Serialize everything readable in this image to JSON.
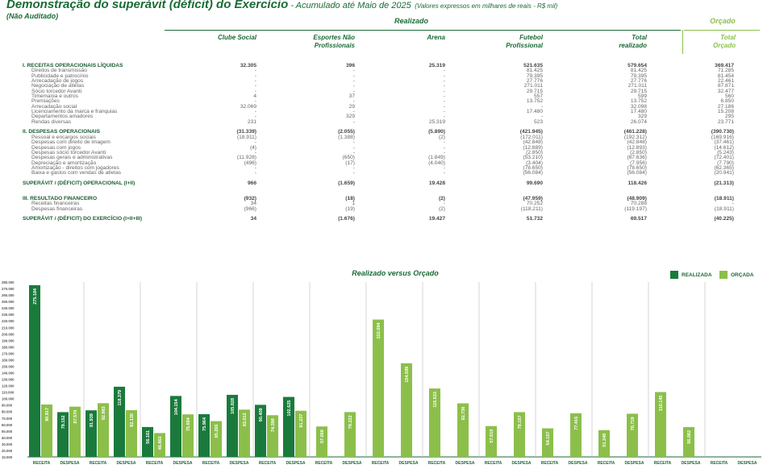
{
  "header": {
    "title": "Demonstração do superávit (déficit) do Exercício",
    "title_sep": " - ",
    "period": "Acumulado até Maio de 2025",
    "unit": "(Valores expressos em milhares de reais - R$ mil)",
    "status": "(Não Auditado)"
  },
  "groups": {
    "realizado": "Realizado",
    "orcado": "Orçado"
  },
  "columns": [
    {
      "line1": "",
      "line2": "Clube Social"
    },
    {
      "line1": "Esportes Não",
      "line2": "Profissionais"
    },
    {
      "line1": "",
      "line2": "Arena"
    },
    {
      "line1": "Futebol",
      "line2": "Profissional"
    },
    {
      "line1": "Total",
      "line2": "realizado"
    },
    {
      "line1": "Total",
      "line2": "Orçado"
    }
  ],
  "rows": [
    {
      "type": "sec",
      "label": "I. RECEITAS OPERACIONAIS LÍQUIDAS",
      "values": [
        "32.305",
        "396",
        "25.319",
        "521.635",
        "579.654",
        "369.417"
      ]
    },
    {
      "type": "sub",
      "label": "Direitos de transmissão",
      "values": [
        "-",
        "-",
        "-",
        "81.425",
        "81.425",
        "71.285"
      ]
    },
    {
      "type": "sub",
      "label": "Publicidade e patrocínio",
      "values": [
        "-",
        "-",
        "-",
        "79.395",
        "79.395",
        "81.454"
      ]
    },
    {
      "type": "sub",
      "label": "Arrecadação de jogos",
      "values": [
        "-",
        "-",
        "-",
        "27.776",
        "27.776",
        "22.461"
      ]
    },
    {
      "type": "sub",
      "label": "Negociação de atletas",
      "values": [
        "-",
        "-",
        "-",
        "271.011",
        "271.011",
        "87.871"
      ]
    },
    {
      "type": "sub",
      "label": "Sócio torcedor Avanti",
      "values": [
        "-",
        "-",
        "-",
        "29.715",
        "29.715",
        "32.477"
      ]
    },
    {
      "type": "sub",
      "label": "Timemania e outros",
      "values": [
        "4",
        "37",
        "-",
        "557",
        "599",
        "560"
      ]
    },
    {
      "type": "sub",
      "label": "Premiações",
      "values": [
        "-",
        "-",
        "-",
        "13.752",
        "13.752",
        "6.850"
      ]
    },
    {
      "type": "sub",
      "label": "Arrecadação social",
      "values": [
        "32.069",
        "29",
        "-",
        "-",
        "32.098",
        "27.186"
      ]
    },
    {
      "type": "sub",
      "label": "Licenciamento da marca e franquias",
      "values": [
        "-",
        "-",
        "-",
        "17.480",
        "17.480",
        "15.208"
      ]
    },
    {
      "type": "sub",
      "label": "Departamentos amadores",
      "values": [
        "-",
        "329",
        "-",
        "-",
        "329",
        "295"
      ]
    },
    {
      "type": "sub",
      "label": "Rendas diversas",
      "values": [
        "231",
        "-",
        "25.319",
        "523",
        "26.074",
        "23.771"
      ]
    },
    {
      "type": "gap"
    },
    {
      "type": "sec",
      "label": "II. DESPESAS OPERACIONAIS",
      "values": [
        "(31.339)",
        "(2.055)",
        "(5.890)",
        "(421.945)",
        "(461.228)",
        "(390.730)"
      ]
    },
    {
      "type": "sub",
      "label": "Pessoal e encargos sociais",
      "values": [
        "(18.911)",
        "(1.388)",
        "(2)",
        "(172.011)",
        "(192.312)",
        "(169.916)"
      ]
    },
    {
      "type": "sub",
      "label": "Despesas com direito de imagem",
      "values": [
        "-",
        "-",
        "-",
        "(42.848)",
        "(42.848)",
        "(37.461)"
      ]
    },
    {
      "type": "sub",
      "label": "Despesas com jogos",
      "values": [
        "(4)",
        "-",
        "-",
        "(12.889)",
        "(12.893)",
        "(14.612)"
      ]
    },
    {
      "type": "sub",
      "label": "Despesas sócio torcedor Avanti",
      "values": [
        "-",
        "-",
        "-",
        "(2.850)",
        "(2.850)",
        "(5.243)"
      ]
    },
    {
      "type": "sub",
      "label": "Despesas gerais e administrativas",
      "values": [
        "(11.928)",
        "(650)",
        "(1.849)",
        "(53.210)",
        "(67.636)",
        "(72.401)"
      ]
    },
    {
      "type": "sub",
      "label": "Depreciação e amortização",
      "values": [
        "(496)",
        "(17)",
        "(4.040)",
        "(3.404)",
        "(7.956)",
        "(7.790)"
      ]
    },
    {
      "type": "sub",
      "label": "Amortização  - direitos com jogadores",
      "values": [
        "-",
        "-",
        "-",
        "(78.650)",
        "(78.650)",
        "(62.365)"
      ]
    },
    {
      "type": "sub",
      "label": "Baixa e gastos com vendas de atletas",
      "values": [
        "-",
        "-",
        "-",
        "(56.084)",
        "(56.084)",
        "(20.941)"
      ]
    },
    {
      "type": "gap"
    },
    {
      "type": "sec",
      "label": "SUPERÁVIT / (DÉFICIT) OPERACIONAL (I+II)",
      "values": [
        "966",
        "(1.659)",
        "19.428",
        "99.690",
        "118.426",
        "(21.313)"
      ]
    },
    {
      "type": "gap2"
    },
    {
      "type": "sec",
      "label": "III. RESULTADO FINANCEIRO",
      "values": [
        "(932)",
        "(18)",
        "(2)",
        "(47.959)",
        "(48.909)",
        "(18.911)"
      ]
    },
    {
      "type": "sub",
      "label": "Receitas financeiras",
      "values": [
        "34",
        "1",
        "-",
        "70.252",
        "70.288",
        "-"
      ]
    },
    {
      "type": "sub",
      "label": "Despesas financeiras",
      "values": [
        "(966)",
        "(19)",
        "(2)",
        "(118.211)",
        "(119.197)",
        "(18.911)"
      ]
    },
    {
      "type": "gap"
    },
    {
      "type": "sec",
      "label": "SUPERÁVIT / (DÉFICIT) DO EXERCÍCIO  (I+II+III)",
      "values": [
        "34",
        "(1.676)",
        "19.427",
        "51.732",
        "69.517",
        "(40.225)"
      ]
    }
  ],
  "chart": {
    "title": "Realizado versus Orçado",
    "legend": [
      {
        "label": "REALIZADA",
        "color": "#1a7a3c"
      },
      {
        "label": "ORÇADA",
        "color": "#8cbf4a"
      }
    ]
  },
  "chart_data": {
    "type": "bar",
    "ylim": [
      10000,
      280000
    ],
    "yticks": [
      "280.000",
      "270.000",
      "260.000",
      "250.000",
      "240.000",
      "230.000",
      "220.000",
      "210.000",
      "200.000",
      "190.000",
      "180.000",
      "170.000",
      "160.000",
      "150.000",
      "140.000",
      "130.000",
      "120.000",
      "110.000",
      "100.000",
      "90.000",
      "80.000",
      "70.000",
      "60.000",
      "50.000",
      "40.000",
      "30.000",
      "20.000",
      "10.000"
    ],
    "categories": [
      "RECEITA",
      "DESPESA",
      "RECEITA",
      "DESPESA",
      "RECEITA",
      "DESPESA",
      "RECEITA",
      "DESPESA",
      "RECEITA",
      "DESPESA",
      "RECEITA",
      "DESPESA",
      "RECEITA",
      "DESPESA",
      "RECEITA",
      "DESPESA",
      "RECEITA",
      "DESPESA",
      "RECEITA",
      "DESPESA",
      "RECEITA",
      "DESPESA",
      "RECEITA",
      "DESPESA",
      "RECEITA",
      "DESPESA"
    ],
    "series": [
      {
        "name": "REALIZADA",
        "values": [
          275184,
          79152,
          81939,
          118379,
          56161,
          104154,
          75964,
          105828,
          90409,
          102625,
          null,
          null,
          null,
          null,
          null,
          null,
          null,
          null,
          null,
          null,
          null,
          null,
          null,
          null,
          null,
          null
        ]
      },
      {
        "name": "ORÇADA",
        "values": [
          90917,
          87570,
          92983,
          82130,
          46863,
          75694,
          65266,
          83012,
          74398,
          81237,
          57008,
          79222,
          222094,
          154599,
          115633,
          92736,
          57610,
          79157,
          54157,
          77416,
          51348,
          76719,
          110145,
          56082,
          null,
          null
        ]
      }
    ],
    "value_labels": [
      [
        "275.184",
        "79.152",
        "81.939",
        "118.379",
        "56.161",
        "104.154",
        "75.964",
        "105.828",
        "90.409",
        "102.625"
      ],
      [
        "90.917",
        "87.570",
        "92.983",
        "82.130",
        "46.863",
        "75.694",
        "65.266",
        "83.012",
        "74.398",
        "81.237",
        "57.008",
        "79.222",
        "222.094",
        "154.599",
        "115.633",
        "92.736",
        "57.610",
        "79.157",
        "54.157",
        "77.416",
        "51.348",
        "76.719",
        "110.145",
        "56.082"
      ]
    ]
  }
}
